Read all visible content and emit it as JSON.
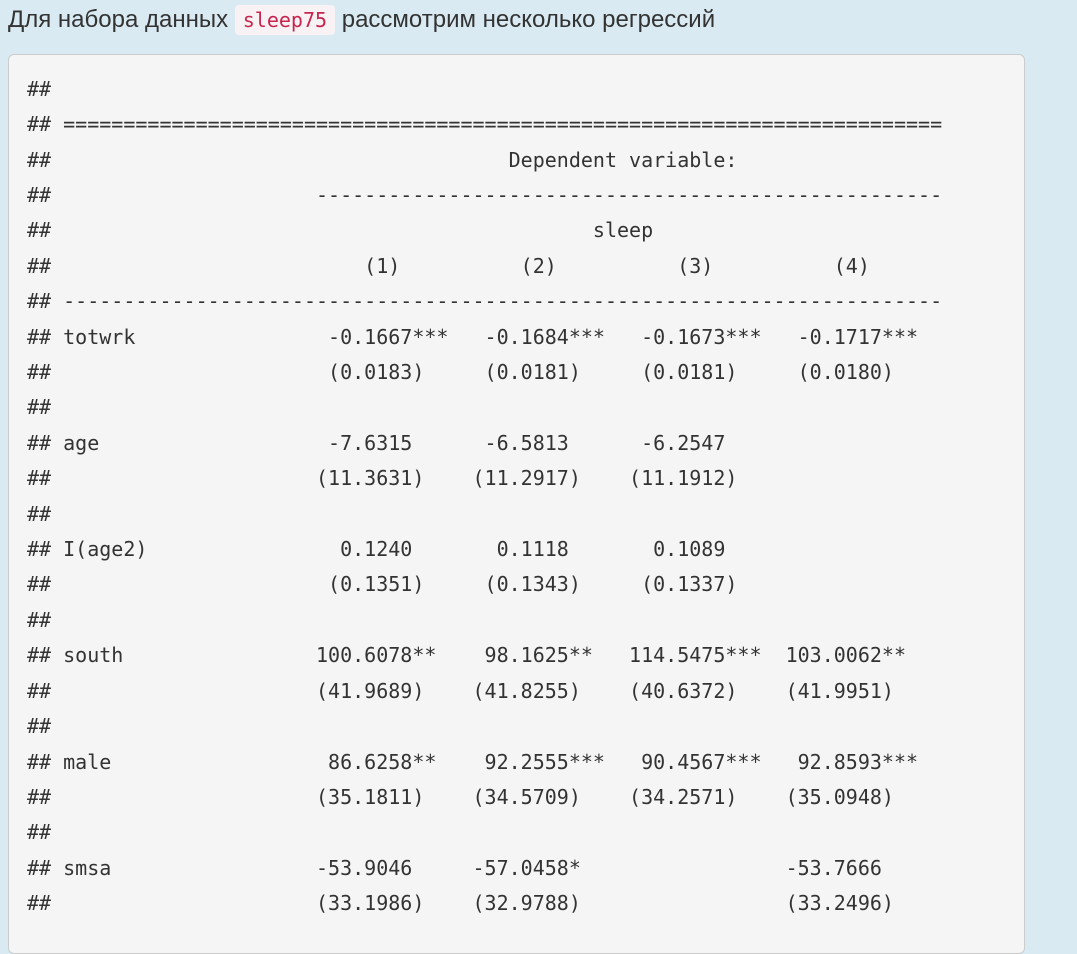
{
  "page": {
    "intro_paragraph": {
      "text_before": "Для набора данных ",
      "inline_code": "sleep75",
      "text_after": " рассмотрим несколько регрессий"
    },
    "console_output": {
      "comment_prefix": "##",
      "table": {
        "dependent_variable_label": "Dependent variable:",
        "dependent_variable": "sleep",
        "model_numbers": [
          "(1)",
          "(2)",
          "(3)",
          "(4)"
        ],
        "coefficient_rows": [
          {
            "label": "totwrk",
            "estimates": [
              "-0.1667***",
              "-0.1684***",
              "-0.1673***",
              "-0.1717***"
            ],
            "std_errors": [
              "(0.0183)",
              "(0.0181)",
              "(0.0181)",
              "(0.0180)"
            ]
          },
          {
            "label": "age",
            "estimates": [
              "-7.6315",
              "-6.5813",
              "-6.2547",
              ""
            ],
            "std_errors": [
              "(11.3631)",
              "(11.2917)",
              "(11.1912)",
              ""
            ]
          },
          {
            "label": "I(age2)",
            "estimates": [
              "0.1240",
              "0.1118",
              "0.1089",
              ""
            ],
            "std_errors": [
              "(0.1351)",
              "(0.1343)",
              "(0.1337)",
              ""
            ]
          },
          {
            "label": "south",
            "estimates": [
              "100.6078**",
              "98.1625**",
              "114.5475***",
              "103.0062**"
            ],
            "std_errors": [
              "(41.9689)",
              "(41.8255)",
              "(40.6372)",
              "(41.9951)"
            ]
          },
          {
            "label": "male",
            "estimates": [
              "86.6258**",
              "92.2555***",
              "90.4567***",
              "92.8593***"
            ],
            "std_errors": [
              "(35.1811)",
              "(34.5709)",
              "(34.2571)",
              "(35.0948)"
            ]
          },
          {
            "label": "smsa",
            "estimates": [
              "-53.9046",
              "-57.0458*",
              "",
              "-53.7666"
            ],
            "std_errors": [
              "(33.1986)",
              "(32.9788)",
              "",
              "(33.2496)"
            ]
          }
        ]
      }
    },
    "colors": {
      "page_background": "#d9eaf2",
      "code_block_background": "#f5f5f5",
      "code_block_border": "#cccccc",
      "text": "#333333",
      "inline_code_text": "#c7254e",
      "inline_code_background": "#f9f2f4"
    }
  }
}
